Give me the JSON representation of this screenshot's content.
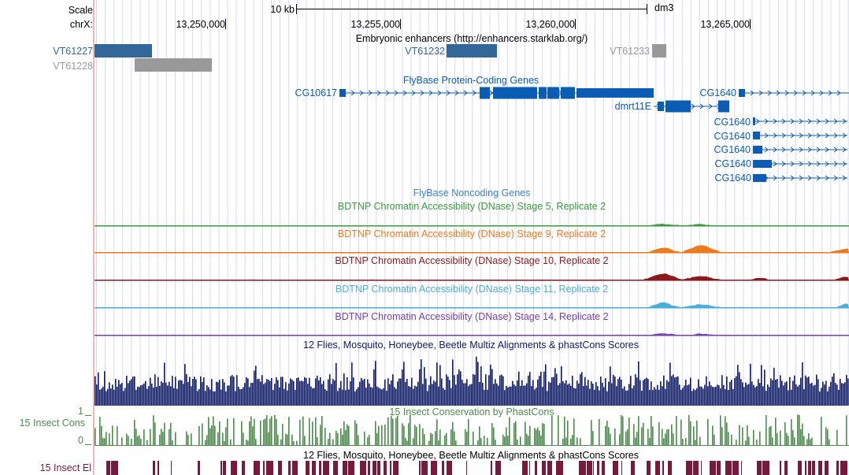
{
  "header": {
    "scale_label": "Scale",
    "chrom_label": "chrX:",
    "scale_bar_label": "10 kb",
    "assembly": "dm3",
    "positions": [
      "13,250,000",
      "13,255,000",
      "13,260,000",
      "13,265,000"
    ]
  },
  "tracks": {
    "enhancers": {
      "title": "Embryonic enhancers (http://enhancers.starklab.org/)",
      "items": [
        "VT61227",
        "VT61228",
        "VT61232",
        "VT61233"
      ],
      "colors": {
        "dark": "#336699",
        "gray": "#999999"
      }
    },
    "protein_coding": {
      "title": "FlyBase Protein-Coding Genes",
      "genes": [
        "CG10617",
        "dmrt11E",
        "CG1640",
        "CG1640",
        "CG1640",
        "CG1640",
        "CG1640",
        "CG1640"
      ],
      "color": "#0a5cb4"
    },
    "noncoding": {
      "title": "FlyBase Noncoding Genes",
      "color": "#3b82c8"
    },
    "dnase": [
      {
        "title": "BDTNP Chromatin Accessibility (DNase) Stage 5, Replicate 2",
        "color": "#3c9a3c"
      },
      {
        "title": "BDTNP Chromatin Accessibility (DNase) Stage 9, Replicate 2",
        "color": "#ee7a1e"
      },
      {
        "title": "BDTNP Chromatin Accessibility (DNase) Stage 10, Replicate 2",
        "color": "#8c1a1a"
      },
      {
        "title": "BDTNP Chromatin Accessibility (DNase) Stage 11, Replicate 2",
        "color": "#4aaed8"
      },
      {
        "title": "BDTNP Chromatin Accessibility (DNase) Stage 14, Replicate 2",
        "color": "#7a3ea8"
      }
    ],
    "multiz": {
      "title": "12 Flies, Mosquito, Honeybee, Beetle Multiz Alignments & phastCons Scores",
      "color": "#0f1a66"
    },
    "phastcons": {
      "title": "15 Insect Conservation by PhastCons",
      "side_label": "15 Insect Cons",
      "axis_max": "1",
      "axis_min": "0",
      "color": "#4d8a4d"
    },
    "elements": {
      "title": "12 Flies, Mosquito, Honeybee, Beetle Multiz Alignments & phastCons Scores",
      "side_label": "15 Insect El",
      "color": "#7a1a3a"
    }
  }
}
